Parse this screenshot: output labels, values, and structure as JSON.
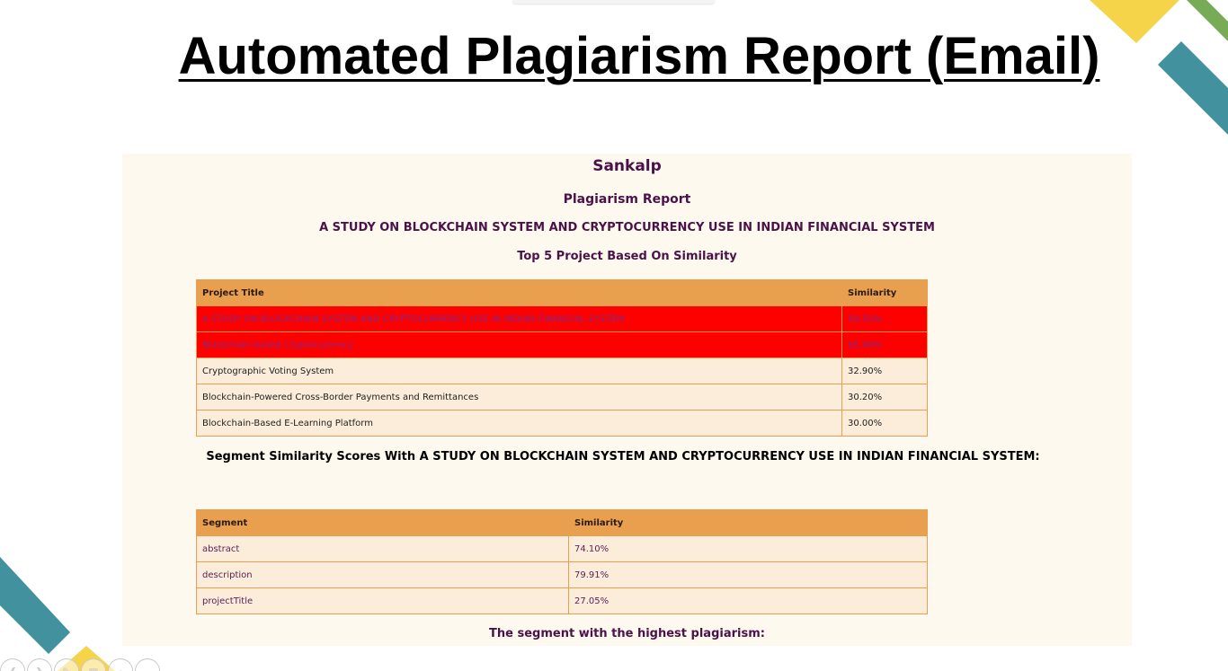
{
  "slide": {
    "title": "Automated Plagiarism Report (Email)"
  },
  "email": {
    "org_name": "Sankalp",
    "report_title": "Plagiarism Report",
    "project_name": "A STUDY ON BLOCKCHAIN SYSTEM AND CRYPTOCURRENCY USE IN INDIAN FINANCIAL SYSTEM",
    "top_projects_heading": "Top 5 Project Based On Similarity",
    "top_projects_table": {
      "headers": [
        "Project Title",
        "Similarity"
      ],
      "rows": [
        {
          "title": "A STUDY ON BLOCKCHAIN SYSTEM AND CRYPTOCURRENCY USE IN INDIAN FINANCIAL SYSTEM",
          "similarity": "99.50%",
          "flagged": true
        },
        {
          "title": "Blockchain-based Cryptocurrency",
          "similarity": "65.40%",
          "flagged": true
        },
        {
          "title": "Cryptographic Voting System",
          "similarity": "32.90%",
          "flagged": false
        },
        {
          "title": "Blockchain-Powered Cross-Border Payments and Remittances",
          "similarity": "30.20%",
          "flagged": false
        },
        {
          "title": "Blockchain-Based E-Learning Platform",
          "similarity": "30.00%",
          "flagged": false
        }
      ]
    },
    "segment_heading": "Segment Similarity Scores With A STUDY ON BLOCKCHAIN SYSTEM AND CRYPTOCURRENCY USE IN INDIAN FINANCIAL SYSTEM:",
    "segment_table": {
      "headers": [
        "Segment",
        "Similarity"
      ],
      "rows": [
        {
          "segment": "abstract",
          "similarity": "74.10%"
        },
        {
          "segment": "description",
          "similarity": "79.91%"
        },
        {
          "segment": "projectTitle",
          "similarity": "27.05%"
        }
      ]
    },
    "highest_segment_heading": "The segment with the highest plagiarism:"
  },
  "colors": {
    "accent_yellow": "#f6d44a",
    "accent_teal": "#41919f",
    "accent_green": "#78ab55",
    "table_header": "#e8a04e",
    "flagged_row": "#ff0000",
    "heading_purple": "#4a1248",
    "email_background": "#fdf9ee"
  },
  "slideshow_controls": [
    {
      "name": "previous-slide",
      "icon": "chevron-left-icon",
      "glyph": "❮"
    },
    {
      "name": "next-slide",
      "icon": "chevron-right-icon",
      "glyph": "❯"
    },
    {
      "name": "pen-tool",
      "icon": "pen-icon",
      "glyph": "✎"
    },
    {
      "name": "see-all-slides",
      "icon": "grid-icon",
      "glyph": "▦"
    },
    {
      "name": "zoom",
      "icon": "magnifier-icon",
      "glyph": "⌕"
    },
    {
      "name": "more-options",
      "icon": "more-icon",
      "glyph": "⋯"
    }
  ]
}
